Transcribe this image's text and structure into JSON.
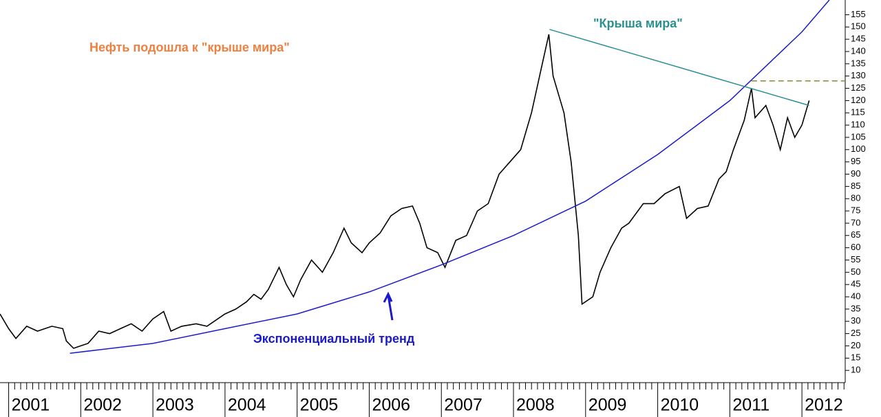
{
  "chart_data": {
    "type": "line",
    "annotations": [
      "Нефть подошла к \"крыше мира\"",
      "\"Крыша мира\"",
      "Экспоненциальный тренд"
    ],
    "series": [
      {
        "color": "#000000",
        "style": "solid",
        "x": [
          2000.88,
          2001.0,
          2001.1,
          2001.25,
          2001.4,
          2001.6,
          2001.75,
          2001.8,
          2001.9,
          2002.0,
          2002.1,
          2002.25,
          2002.4,
          2002.55,
          2002.7,
          2002.85,
          2003.0,
          2003.15,
          2003.25,
          2003.4,
          2003.6,
          2003.75,
          2003.85,
          2004.0,
          2004.15,
          2004.3,
          2004.4,
          2004.5,
          2004.6,
          2004.75,
          2004.85,
          2004.95,
          2005.05,
          2005.2,
          2005.35,
          2005.5,
          2005.65,
          2005.75,
          2005.9,
          2006.0,
          2006.15,
          2006.3,
          2006.45,
          2006.6,
          2006.7,
          2006.8,
          2006.95,
          2007.05,
          2007.2,
          2007.35,
          2007.5,
          2007.65,
          2007.8,
          2007.95,
          2008.1,
          2008.25,
          2008.4,
          2008.49,
          2008.55,
          2008.7,
          2008.8,
          2008.9,
          2008.95,
          2009.1,
          2009.2,
          2009.35,
          2009.5,
          2009.6,
          2009.8,
          2009.95,
          2010.1,
          2010.3,
          2010.4,
          2010.55,
          2010.7,
          2010.85,
          2010.95,
          2011.05,
          2011.2,
          2011.3,
          2011.35,
          2011.5,
          2011.6,
          2011.7,
          2011.8,
          2011.9,
          2012.0,
          2012.1
        ],
        "values": [
          33,
          27,
          23,
          28,
          26,
          28,
          27,
          22,
          19,
          20,
          21,
          26,
          25,
          27,
          29,
          26,
          31,
          34,
          26,
          28,
          29,
          28,
          30,
          33,
          35,
          38,
          41,
          39,
          43,
          52,
          45,
          40,
          47,
          55,
          50,
          58,
          68,
          62,
          58,
          62,
          66,
          73,
          76,
          77,
          70,
          60,
          58,
          52,
          63,
          65,
          75,
          78,
          90,
          95,
          100,
          115,
          135,
          147,
          130,
          115,
          95,
          65,
          37,
          40,
          50,
          60,
          68,
          70,
          78,
          78,
          82,
          85,
          72,
          76,
          77,
          88,
          91,
          100,
          112,
          125,
          113,
          118,
          110,
          100,
          113,
          105,
          110,
          120
        ]
      },
      {
        "color": "#1a1acc",
        "style": "solid",
        "x": [
          2001.85,
          2003,
          2004,
          2005,
          2006,
          2007,
          2008,
          2009,
          2010,
          2011,
          2012,
          2012.38
        ],
        "values": [
          17,
          21,
          27,
          33,
          42,
          53,
          65,
          79,
          98,
          120,
          148,
          161
        ]
      },
      {
        "color": "#2a9090",
        "style": "solid",
        "x": [
          2008.5,
          2012.1
        ],
        "values": [
          149,
          118
        ]
      },
      {
        "color": "#8a8a20",
        "style": "dashed",
        "x": [
          2011.3,
          2012.6
        ],
        "values": [
          128,
          128
        ]
      }
    ],
    "xlim": [
      2000.88,
      2012.6
    ],
    "xticks": [
      2001,
      2002,
      2003,
      2004,
      2005,
      2006,
      2007,
      2008,
      2009,
      2010,
      2011,
      2012
    ],
    "ylim": [
      5,
      161
    ],
    "yticks": [
      10,
      15,
      20,
      25,
      30,
      35,
      40,
      45,
      50,
      55,
      60,
      65,
      70,
      75,
      80,
      85,
      90,
      95,
      100,
      105,
      110,
      115,
      120,
      125,
      130,
      135,
      140,
      145,
      150,
      155
    ]
  }
}
